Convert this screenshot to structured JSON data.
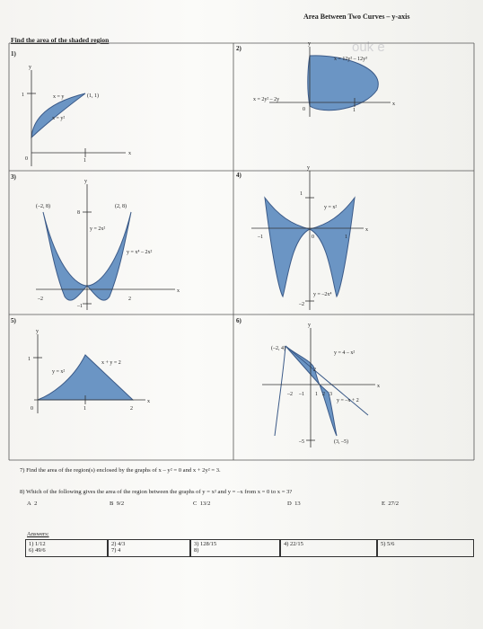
{
  "header": {
    "title": "Area Between Two Curves – y-axis"
  },
  "instructions": "Find the area of the shaded region",
  "problems": [
    {
      "number": "1)",
      "labels": [
        "x = y",
        "(1, 1)",
        "x = y²",
        "1",
        "0",
        "1",
        "y",
        "x"
      ]
    },
    {
      "number": "2)",
      "labels": [
        "x = 12y² – 12y³",
        "x = 2y² – 2y",
        "0",
        "1",
        "y",
        "x"
      ]
    },
    {
      "number": "3)",
      "labels": [
        "(–2, 8)",
        "(2, 8)",
        "8",
        "y = 2x²",
        "y = x⁴ – 2x²",
        "–2",
        "–1",
        "2",
        "y",
        "x"
      ]
    },
    {
      "number": "4)",
      "labels": [
        "1",
        "y = x²",
        "–1",
        "0",
        "1",
        "–2",
        "y = –2x⁴",
        "y",
        "x"
      ]
    },
    {
      "number": "5)",
      "labels": [
        "1",
        "x + y = 2",
        "y = x²",
        "0",
        "1",
        "2",
        "y",
        "x"
      ]
    },
    {
      "number": "6)",
      "labels": [
        "(–2, 4)",
        "y = 4 – x²",
        "2",
        "–2",
        "–1",
        "1",
        "2",
        "3",
        "y = –x + 2",
        "–5",
        "(3, –5)",
        "y",
        "x"
      ]
    }
  ],
  "question7": "7) Find the area of the region(s) enclosed by the graphs of x – y² = 0 and x + 2y² = 3.",
  "question8": "8) Which of the following gives the area of the region between the graphs of y = x² and y = –x from x = 0 to x = 3?",
  "choices": [
    {
      "letter": "A",
      "value": "2"
    },
    {
      "letter": "B",
      "value": "9/2"
    },
    {
      "letter": "C",
      "value": "13/2"
    },
    {
      "letter": "D",
      "value": "13"
    },
    {
      "letter": "E",
      "value": "27/2"
    }
  ],
  "answers_heading": "Answers:",
  "answers": [
    "1) 1/12",
    "2) 4/3",
    "3) 128/15",
    "4) 22/15",
    "5) 5/6",
    "6) 49/6",
    "7) 4",
    "8)"
  ],
  "watermark": "ouk e"
}
